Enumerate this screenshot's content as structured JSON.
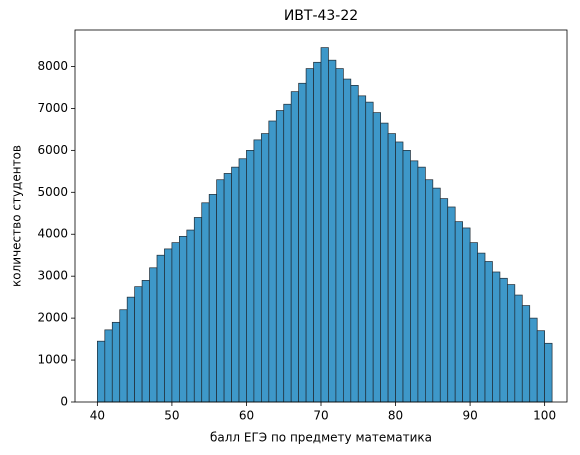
{
  "chart_data": {
    "type": "histogram",
    "title": "ИВТ-43-22",
    "x_label": "балл ЕГЭ по предмету математика",
    "y_label": "количество студентов",
    "bins": [
      40,
      41,
      42,
      43,
      44,
      45,
      46,
      47,
      48,
      49,
      50,
      51,
      52,
      53,
      54,
      55,
      56,
      57,
      58,
      59,
      60,
      61,
      62,
      63,
      64,
      65,
      66,
      67,
      68,
      69,
      70,
      71,
      72,
      73,
      74,
      75,
      76,
      77,
      78,
      79,
      80,
      81,
      82,
      83,
      84,
      85,
      86,
      87,
      88,
      89,
      90,
      91,
      92,
      93,
      94,
      95,
      96,
      97,
      98,
      99,
      100,
      101
    ],
    "values": [
      1450,
      1720,
      1900,
      2200,
      2500,
      2750,
      2900,
      3200,
      3500,
      3650,
      3800,
      3950,
      4100,
      4400,
      4750,
      4950,
      5300,
      5450,
      5600,
      5800,
      6000,
      6250,
      6400,
      6700,
      6950,
      7100,
      7400,
      7600,
      7950,
      8100,
      8450,
      8150,
      7950,
      7700,
      7550,
      7300,
      7150,
      6900,
      6650,
      6400,
      6200,
      6000,
      5750,
      5600,
      5300,
      5100,
      4850,
      4650,
      4300,
      4150,
      3800,
      3550,
      3350,
      3100,
      2950,
      2800,
      2550,
      2300,
      2000,
      1700,
      1400
    ],
    "color": "#3e98c9",
    "edge_color": "#1f2a33",
    "xlim": [
      37,
      103
    ],
    "ylim": [
      0,
      8870
    ],
    "xticks": [
      40,
      50,
      60,
      70,
      80,
      90,
      100
    ],
    "yticks": [
      0,
      1000,
      2000,
      3000,
      4000,
      5000,
      6000,
      7000,
      8000
    ]
  }
}
